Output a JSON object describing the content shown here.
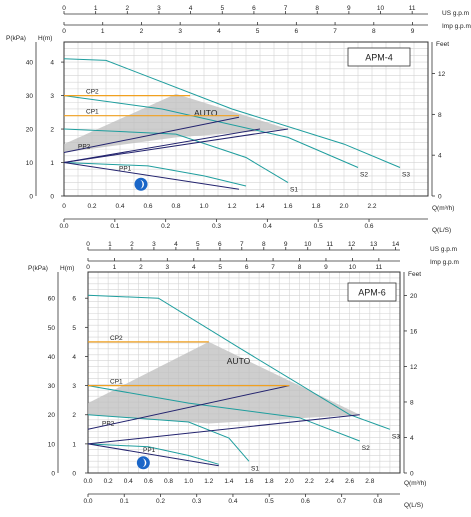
{
  "colors": {
    "teal": "#1f9e9e",
    "navy": "#23236e",
    "orange": "#f0a020",
    "gray": "#bdbdbd",
    "grid": "#d4d4d4",
    "axis": "#333333",
    "icon": "#1a66c8"
  },
  "chart_data": [
    {
      "type": "line",
      "title": "APM-4",
      "units": {
        "top_us": "US  g.p.m",
        "top_imp": "Imp  g.p.m",
        "left_kpa": "P(kPa)",
        "left_m": "H(m)",
        "right_ft": "Feet",
        "bottom_m3h": "Q(m³/h)",
        "bottom_ls": "Q(L/S)"
      },
      "ticks": {
        "us": [
          "0",
          "1",
          "2",
          "3",
          "4",
          "5",
          "6",
          "7",
          "8",
          "9",
          "10",
          "11"
        ],
        "imp": [
          "0",
          "1",
          "2",
          "3",
          "4",
          "5",
          "6",
          "7",
          "8",
          "9"
        ],
        "kpa": [
          "0",
          "10",
          "20",
          "30",
          "40"
        ],
        "h": [
          "0",
          "1",
          "2",
          "3",
          "4"
        ],
        "feet": [
          "0",
          "4",
          "8",
          "12"
        ],
        "m3h": [
          "0",
          "0.2",
          "0.4",
          "0.6",
          "0.8",
          "1.0",
          "1.2",
          "1.4",
          "1.6",
          "1.8",
          "2.0",
          "2.2"
        ],
        "ls": [
          "0.0",
          "0.1",
          "0.2",
          "0.3",
          "0.4",
          "0.5",
          "0.6"
        ]
      },
      "xlim": [
        0,
        2.6
      ],
      "ylim": [
        0,
        4.6
      ],
      "auto_label": "AUTO",
      "auto_region": [
        [
          0,
          1.3
        ],
        [
          0,
          1.55
        ],
        [
          0.8,
          3.05
        ],
        [
          1.6,
          2.0
        ],
        [
          0.8,
          1.75
        ]
      ],
      "series": [
        {
          "name": "S3",
          "color": "teal",
          "points": [
            [
              0,
              4.1
            ],
            [
              0.3,
              4.05
            ],
            [
              1.2,
              2.6
            ],
            [
              2.0,
              1.55
            ],
            [
              2.4,
              0.85
            ]
          ]
        },
        {
          "name": "S2",
          "color": "teal",
          "points": [
            [
              0,
              3.0
            ],
            [
              0.7,
              2.6
            ],
            [
              1.6,
              1.75
            ],
            [
              2.1,
              0.85
            ]
          ]
        },
        {
          "name": "S1",
          "color": "teal",
          "points": [
            [
              0,
              2.0
            ],
            [
              0.8,
              1.85
            ],
            [
              1.3,
              1.15
            ],
            [
              1.6,
              0.4
            ]
          ]
        },
        {
          "name": "",
          "color": "teal",
          "points": [
            [
              0,
              1.0
            ],
            [
              0.6,
              0.9
            ],
            [
              1.0,
              0.6
            ],
            [
              1.3,
              0.3
            ]
          ]
        },
        {
          "name": "",
          "color": "navy",
          "points": [
            [
              0,
              1.0
            ],
            [
              1.25,
              0.2
            ]
          ]
        },
        {
          "name": "PP2",
          "color": "navy",
          "points": [
            [
              0,
              1.3
            ],
            [
              1.25,
              2.35
            ]
          ]
        },
        {
          "name": "PP1",
          "color": "navy",
          "points": [
            [
              0,
              1.0
            ],
            [
              1.4,
              2.0
            ]
          ]
        },
        {
          "name": "",
          "color": "navy",
          "points": [
            [
              0,
              1.0
            ],
            [
              1.6,
              2.0
            ]
          ]
        },
        {
          "name": "CP2",
          "color": "orange",
          "points": [
            [
              0,
              3.0
            ],
            [
              0.9,
              3.0
            ]
          ]
        },
        {
          "name": "CP1",
          "color": "orange",
          "points": [
            [
              0,
              2.4
            ],
            [
              1.25,
              2.4
            ]
          ]
        }
      ]
    },
    {
      "type": "line",
      "title": "APM-6",
      "units": {
        "top_us": "US  g.p.m",
        "top_imp": "Imp  g.p.m",
        "left_kpa": "P(kPa)",
        "left_m": "H(m)",
        "right_ft": "Feet",
        "bottom_m3h": "Q(m³/h)",
        "bottom_ls": "Q(L/S)"
      },
      "ticks": {
        "us": [
          "0",
          "1",
          "2",
          "3",
          "4",
          "5",
          "6",
          "7",
          "8",
          "9",
          "10",
          "11",
          "12",
          "13",
          "14"
        ],
        "imp": [
          "0",
          "1",
          "2",
          "3",
          "4",
          "5",
          "6",
          "7",
          "8",
          "9",
          "10",
          "11"
        ],
        "kpa": [
          "0",
          "10",
          "20",
          "30",
          "40",
          "50",
          "60"
        ],
        "h": [
          "0",
          "1",
          "2",
          "3",
          "4",
          "5",
          "6"
        ],
        "feet": [
          "0",
          "4",
          "8",
          "12",
          "16",
          "20"
        ],
        "m3h": [
          "0.0",
          "0.2",
          "0.4",
          "0.6",
          "0.8",
          "1.0",
          "1.2",
          "1.4",
          "1.6",
          "1.8",
          "2.0",
          "2.2",
          "2.4",
          "2.6",
          "2.8"
        ],
        "ls": [
          "0.0",
          "0.1",
          "0.2",
          "0.3",
          "0.4",
          "0.5",
          "0.6",
          "0.7",
          "0.8"
        ]
      },
      "xlim": [
        0,
        3.1
      ],
      "ylim": [
        0,
        6.9
      ],
      "auto_label": "AUTO",
      "auto_region": [
        [
          0,
          2.0
        ],
        [
          0,
          2.4
        ],
        [
          1.2,
          4.5
        ],
        [
          2.7,
          2.0
        ],
        [
          1.2,
          1.7
        ]
      ],
      "series": [
        {
          "name": "S3",
          "color": "teal",
          "points": [
            [
              0,
              6.1
            ],
            [
              0.7,
              6.0
            ],
            [
              1.5,
              4.3
            ],
            [
              2.6,
              2.0
            ],
            [
              3.0,
              1.5
            ]
          ]
        },
        {
          "name": "S2",
          "color": "teal",
          "points": [
            [
              0,
              3.0
            ],
            [
              1.0,
              2.4
            ],
            [
              2.1,
              1.9
            ],
            [
              2.7,
              1.1
            ]
          ]
        },
        {
          "name": "S1",
          "color": "teal",
          "points": [
            [
              0,
              2.0
            ],
            [
              1.0,
              1.75
            ],
            [
              1.4,
              1.2
            ],
            [
              1.6,
              0.4
            ]
          ]
        },
        {
          "name": "",
          "color": "teal",
          "points": [
            [
              0,
              1.0
            ],
            [
              0.6,
              0.9
            ],
            [
              1.0,
              0.6
            ],
            [
              1.3,
              0.3
            ]
          ]
        },
        {
          "name": "",
          "color": "navy",
          "points": [
            [
              0,
              1.0
            ],
            [
              1.3,
              0.25
            ]
          ]
        },
        {
          "name": "PP2",
          "color": "navy",
          "points": [
            [
              0,
              1.5
            ],
            [
              2.0,
              3.0
            ]
          ]
        },
        {
          "name": "PP1",
          "color": "navy",
          "points": [
            [
              0,
              1.0
            ],
            [
              2.7,
              2.0
            ]
          ]
        },
        {
          "name": "CP2",
          "color": "orange",
          "points": [
            [
              0,
              4.5
            ],
            [
              1.2,
              4.5
            ]
          ]
        },
        {
          "name": "CP1",
          "color": "orange",
          "points": [
            [
              0,
              3.0
            ],
            [
              2.0,
              3.0
            ]
          ]
        }
      ]
    }
  ]
}
